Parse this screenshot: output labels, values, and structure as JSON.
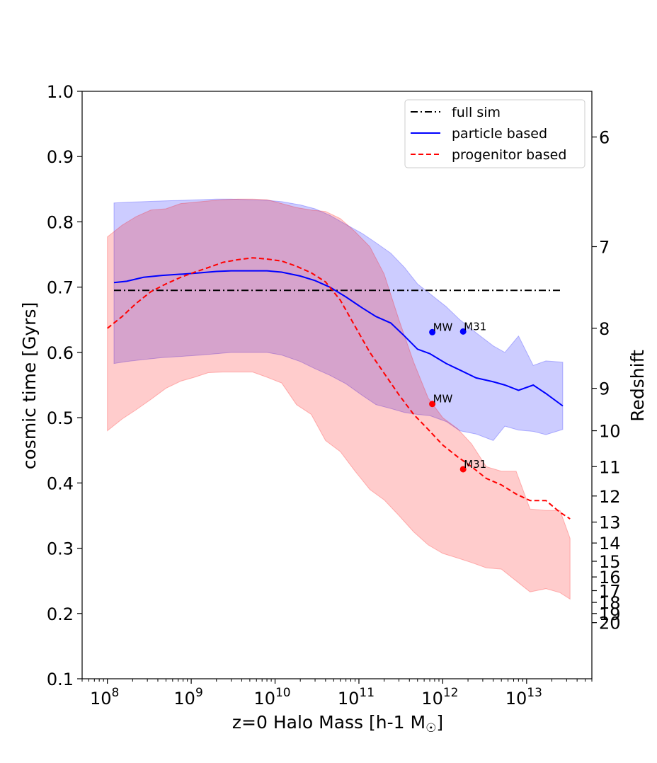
{
  "chart_data": {
    "type": "line",
    "xlabel": "z=0 Halo Mass [h-1 M",
    "xlabel_sub": "☉",
    "xlabel_end": "]",
    "ylabel": "cosmic time [Gyrs]",
    "y2label": "Redshift",
    "xscale": "log",
    "xlim": [
      50000000.0,
      60000000000000.0
    ],
    "ylim": [
      0.1,
      1.0
    ],
    "grid": false,
    "legend_position": "top-right",
    "x_ticks": [
      {
        "base": "10",
        "exp": "8",
        "value": 100000000.0
      },
      {
        "base": "10",
        "exp": "9",
        "value": 1000000000.0
      },
      {
        "base": "10",
        "exp": "10",
        "value": 10000000000.0
      },
      {
        "base": "10",
        "exp": "11",
        "value": 100000000000.0
      },
      {
        "base": "10",
        "exp": "12",
        "value": 1000000000000.0
      },
      {
        "base": "10",
        "exp": "13",
        "value": 10000000000000.0
      }
    ],
    "y_ticks": [
      "0.1",
      "0.2",
      "0.3",
      "0.4",
      "0.5",
      "0.6",
      "0.7",
      "0.8",
      "0.9",
      "1.0"
    ],
    "y2_ticks": [
      {
        "label": "6",
        "t": 0.93
      },
      {
        "label": "7",
        "t": 0.762
      },
      {
        "label": "8",
        "t": 0.637
      },
      {
        "label": "9",
        "t": 0.545
      },
      {
        "label": "10",
        "t": 0.48
      },
      {
        "label": "11",
        "t": 0.425
      },
      {
        "label": "12",
        "t": 0.38
      },
      {
        "label": "13",
        "t": 0.34
      },
      {
        "label": "14",
        "t": 0.308
      },
      {
        "label": "15",
        "t": 0.28
      },
      {
        "label": "16",
        "t": 0.256
      },
      {
        "label": "17",
        "t": 0.235
      },
      {
        "label": "18",
        "t": 0.217
      },
      {
        "label": "19",
        "t": 0.2
      },
      {
        "label": "20",
        "t": 0.186
      }
    ],
    "series": [
      {
        "name": "full sim",
        "color": "#000000",
        "style": "dashdot",
        "x": [
          120000000.0,
          27000000000000.0
        ],
        "y": [
          0.695,
          0.695
        ]
      },
      {
        "name": "particle based",
        "color": "#0000ff",
        "style": "solid",
        "x": [
          120000000.0,
          170000000.0,
          270000000.0,
          450000000.0,
          800000000.0,
          1300000000.0,
          2000000000.0,
          3000000000.0,
          5000000000.0,
          8000000000.0,
          12000000000.0,
          20000000000.0,
          30000000000.0,
          45000000000.0,
          70000000000.0,
          110000000000.0,
          160000000000.0,
          240000000000.0,
          350000000000.0,
          500000000000.0,
          700000000000.0,
          1100000000000.0,
          1600000000000.0,
          2500000000000.0,
          4000000000000.0,
          5500000000000.0,
          8000000000000.0,
          12000000000000.0,
          17000000000000.0,
          27000000000000.0
        ],
        "y": [
          0.707,
          0.709,
          0.715,
          0.718,
          0.72,
          0.722,
          0.724,
          0.725,
          0.725,
          0.725,
          0.723,
          0.717,
          0.71,
          0.7,
          0.685,
          0.668,
          0.655,
          0.645,
          0.625,
          0.605,
          0.598,
          0.583,
          0.573,
          0.561,
          0.555,
          0.55,
          0.542,
          0.55,
          0.537,
          0.518
        ]
      },
      {
        "name": "progenitor based",
        "color": "#ff0000",
        "style": "dashed",
        "x": [
          100000000.0,
          150000000.0,
          220000000.0,
          330000000.0,
          500000000.0,
          750000000.0,
          1100000000.0,
          1600000000.0,
          2400000000.0,
          3600000000.0,
          5400000000.0,
          8000000000.0,
          12000000000.0,
          18000000000.0,
          27000000000.0,
          40000000000.0,
          60000000000.0,
          90000000000.0,
          135000000000.0,
          200000000000.0,
          300000000000.0,
          450000000000.0,
          670000000000.0,
          1000000000000.0,
          1500000000000.0,
          2200000000000.0,
          3300000000000.0,
          5000000000000.0,
          7500000000000.0,
          11000000000000.0,
          17000000000000.0,
          25000000000000.0,
          33000000000000.0
        ],
        "y": [
          0.637,
          0.655,
          0.675,
          0.693,
          0.705,
          0.715,
          0.723,
          0.73,
          0.738,
          0.742,
          0.745,
          0.743,
          0.74,
          0.732,
          0.722,
          0.708,
          0.68,
          0.64,
          0.6,
          0.568,
          0.535,
          0.505,
          0.482,
          0.458,
          0.44,
          0.425,
          0.407,
          0.397,
          0.383,
          0.373,
          0.373,
          0.355,
          0.345
        ]
      }
    ],
    "bands": [
      {
        "color": "#0000ff",
        "opacity": 0.2,
        "x": [
          120000000.0,
          170000000.0,
          270000000.0,
          450000000.0,
          800000000.0,
          1300000000.0,
          2000000000.0,
          3000000000.0,
          5000000000.0,
          8000000000.0,
          12000000000.0,
          20000000000.0,
          30000000000.0,
          45000000000.0,
          70000000000.0,
          110000000000.0,
          160000000000.0,
          240000000000.0,
          350000000000.0,
          500000000000.0,
          700000000000.0,
          1100000000000.0,
          1600000000000.0,
          2500000000000.0,
          4000000000000.0,
          5500000000000.0,
          8000000000000.0,
          12000000000000.0,
          17000000000000.0,
          27000000000000.0
        ],
        "upper": [
          0.829,
          0.83,
          0.831,
          0.832,
          0.833,
          0.834,
          0.835,
          0.835,
          0.834,
          0.833,
          0.831,
          0.826,
          0.82,
          0.81,
          0.796,
          0.782,
          0.768,
          0.752,
          0.73,
          0.705,
          0.69,
          0.67,
          0.65,
          0.63,
          0.61,
          0.6,
          0.625,
          0.58,
          0.587,
          0.585
        ],
        "lower": [
          0.583,
          0.586,
          0.589,
          0.592,
          0.594,
          0.596,
          0.598,
          0.6,
          0.6,
          0.6,
          0.596,
          0.586,
          0.575,
          0.565,
          0.552,
          0.534,
          0.52,
          0.514,
          0.508,
          0.505,
          0.503,
          0.494,
          0.48,
          0.475,
          0.465,
          0.487,
          0.481,
          0.479,
          0.474,
          0.482
        ]
      },
      {
        "color": "#ff0000",
        "opacity": 0.2,
        "x": [
          100000000.0,
          150000000.0,
          220000000.0,
          330000000.0,
          500000000.0,
          750000000.0,
          1100000000.0,
          1600000000.0,
          2400000000.0,
          3600000000.0,
          5400000000.0,
          8000000000.0,
          12000000000.0,
          18000000000.0,
          27000000000.0,
          40000000000.0,
          60000000000.0,
          90000000000.0,
          135000000000.0,
          200000000000.0,
          300000000000.0,
          450000000000.0,
          670000000000.0,
          1000000000000.0,
          1500000000000.0,
          2200000000000.0,
          3300000000000.0,
          5000000000000.0,
          7500000000000.0,
          11000000000000.0,
          17000000000000.0,
          25000000000000.0,
          33000000000000.0
        ],
        "upper": [
          0.777,
          0.795,
          0.808,
          0.818,
          0.82,
          0.828,
          0.83,
          0.832,
          0.834,
          0.835,
          0.835,
          0.834,
          0.828,
          0.822,
          0.818,
          0.816,
          0.805,
          0.785,
          0.762,
          0.72,
          0.65,
          0.585,
          0.53,
          0.5,
          0.483,
          0.46,
          0.425,
          0.418,
          0.418,
          0.36,
          0.358,
          0.358,
          0.315
        ],
        "lower": [
          0.48,
          0.498,
          0.512,
          0.528,
          0.545,
          0.556,
          0.562,
          0.569,
          0.57,
          0.57,
          0.57,
          0.562,
          0.553,
          0.52,
          0.505,
          0.465,
          0.448,
          0.418,
          0.39,
          0.374,
          0.35,
          0.325,
          0.305,
          0.292,
          0.285,
          0.278,
          0.27,
          0.268,
          0.25,
          0.233,
          0.238,
          0.232,
          0.222
        ]
      }
    ],
    "points": [
      {
        "label": "MW",
        "x": 750000000000.0,
        "y": 0.631,
        "color": "#0000ff"
      },
      {
        "label": "M31",
        "x": 1750000000000.0,
        "y": 0.632,
        "color": "#0000ff"
      },
      {
        "label": "MW",
        "x": 750000000000.0,
        "y": 0.521,
        "color": "#ff0000"
      },
      {
        "label": "M31",
        "x": 1750000000000.0,
        "y": 0.421,
        "color": "#ff0000"
      }
    ]
  }
}
